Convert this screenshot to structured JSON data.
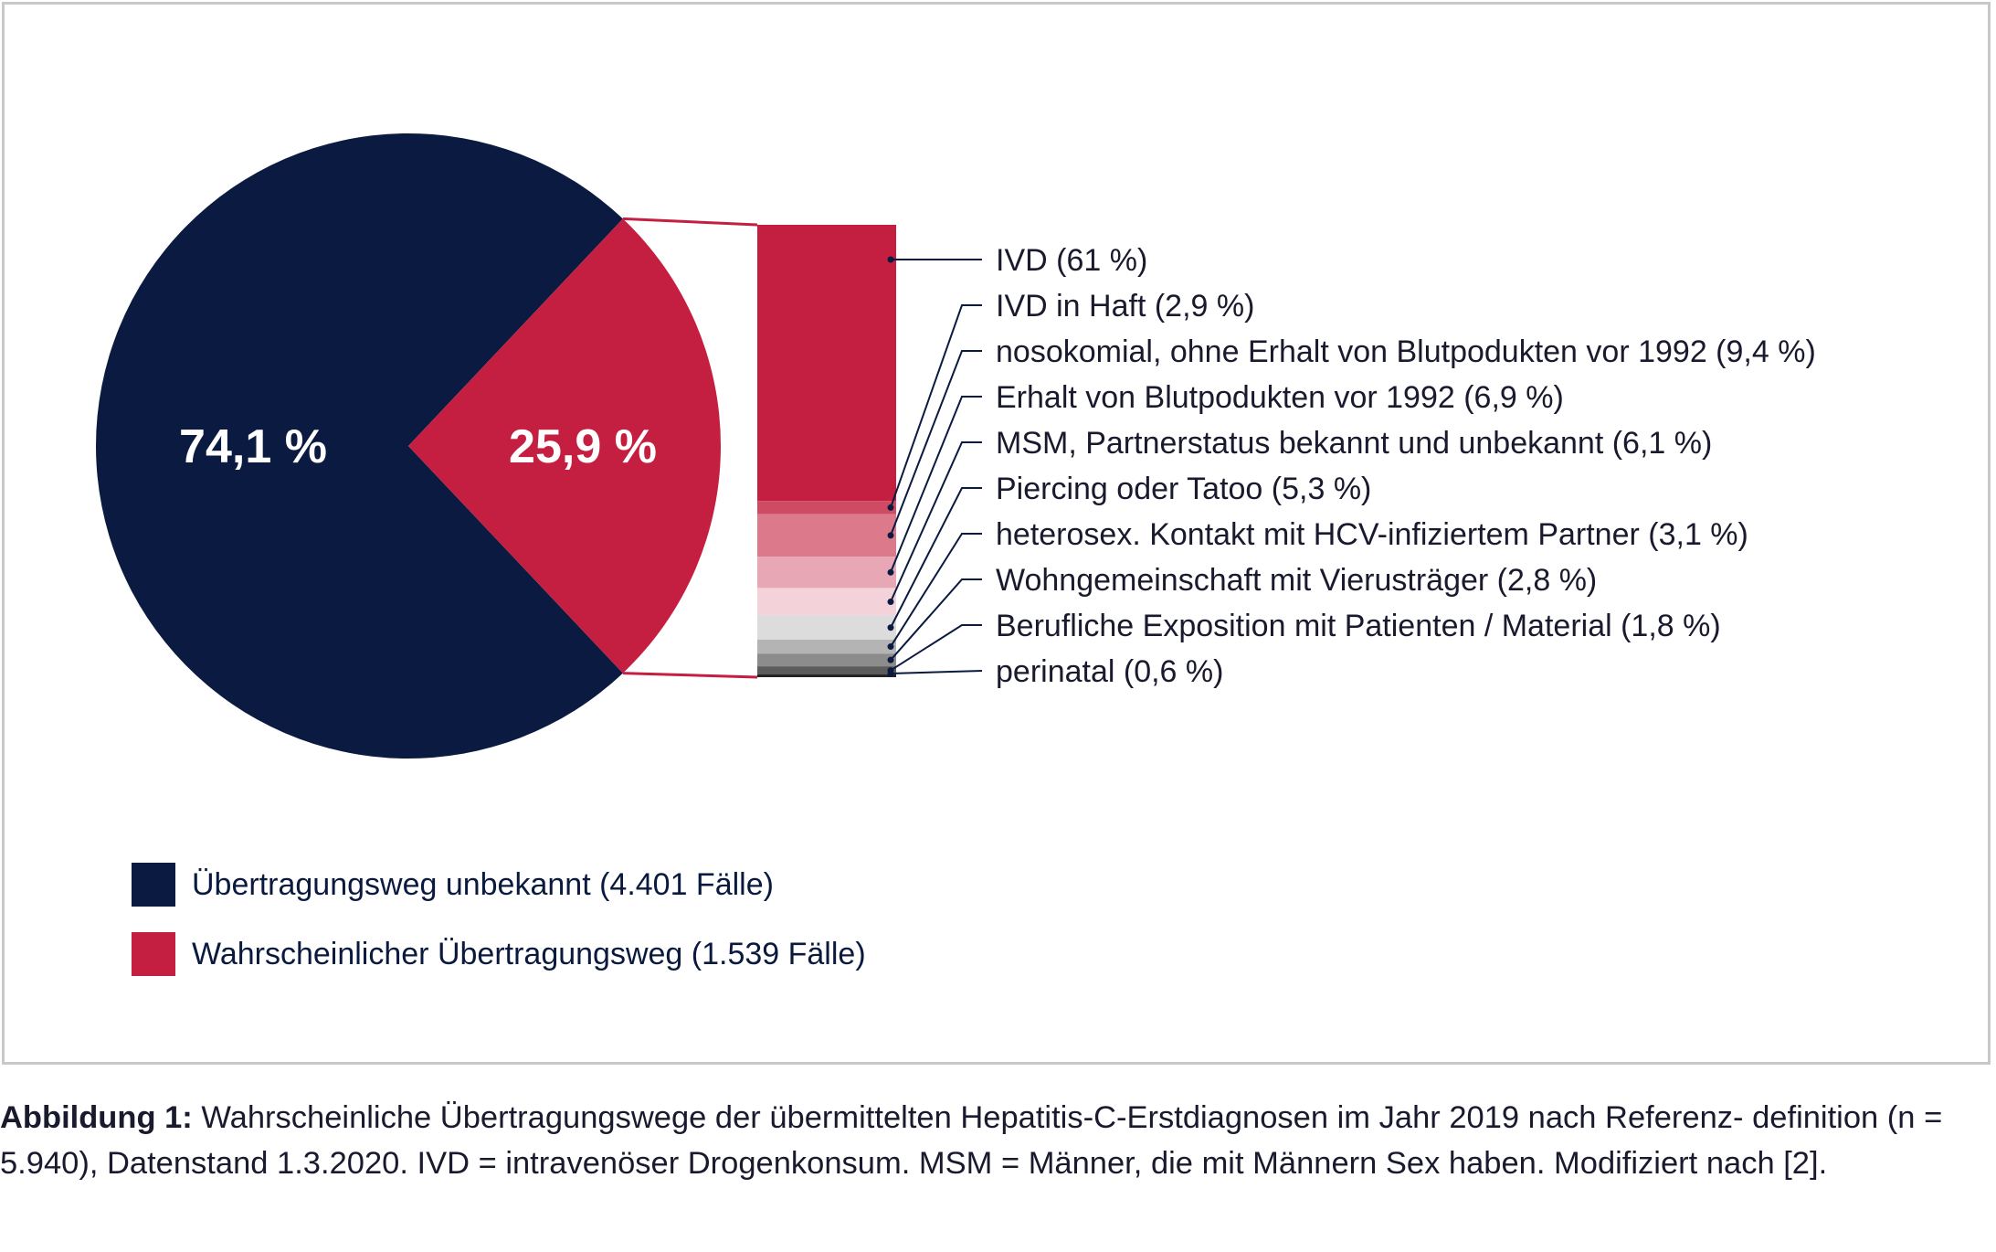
{
  "chart_data": {
    "type": "pie",
    "pie": {
      "slices": [
        {
          "label": "Übertragungsweg unbekannt (4.401 Fälle)",
          "value": 74.1,
          "display": "74,1 %",
          "color": "#0b1a40"
        },
        {
          "label": "Wahrscheinlicher Übertragungsweg (1.539 Fälle)",
          "value": 25.9,
          "display": "25,9 %",
          "color": "#c41f40"
        }
      ]
    },
    "breakdown": {
      "type": "stacked-bar",
      "segments": [
        {
          "label": "IVD (61 %)",
          "value": 61,
          "color": "#c41f40"
        },
        {
          "label": "IVD in Haft (2,9 %)",
          "value": 2.9,
          "color": "#cf4a63"
        },
        {
          "label": "nosokomial, ohne Erhalt von Blutpodukten vor 1992 (9,4 %)",
          "value": 9.4,
          "color": "#dc7a8c"
        },
        {
          "label": "Erhalt von Blutpodukten vor 1992 (6,9 %)",
          "value": 6.9,
          "color": "#e8a7b4"
        },
        {
          "label": "MSM, Partnerstatus bekannt und unbekannt (6,1 %)",
          "value": 6.1,
          "color": "#f3d2da"
        },
        {
          "label": "Piercing oder Tatoo (5,3 %)",
          "value": 5.3,
          "color": "#dcdcdc"
        },
        {
          "label": "heterosex. Kontakt mit HCV-infiziertem Partner (3,1 %)",
          "value": 3.1,
          "color": "#b4b4b4"
        },
        {
          "label": "Wohngemeinschaft mit Vierusträger (2,8 %)",
          "value": 2.8,
          "color": "#8c8c8c"
        },
        {
          "label": "Berufliche Exposition mit Patienten / Material (1,8 %)",
          "value": 1.8,
          "color": "#5c5c5c"
        },
        {
          "label": "perinatal (0,6 %)",
          "value": 0.6,
          "color": "#222222"
        }
      ]
    },
    "legend": [
      {
        "label": "Übertragungsweg unbekannt (4.401 Fälle)",
        "color": "#0b1a40"
      },
      {
        "label": "Wahrscheinlicher Übertragungsweg (1.539 Fälle)",
        "color": "#c41f40"
      }
    ]
  },
  "caption": {
    "bold": "Abbildung 1:",
    "text": "Wahrscheinliche Übertragungswege der übermittelten Hepatitis-C-Erstdiagnosen im Jahr 2019 nach Referenz- definition (n = 5.940), Datenstand 1.3.2020. IVD = intravenöser Drogenkonsum. MSM = Männer, die mit Männern Sex haben. Modifiziert nach [2]."
  }
}
